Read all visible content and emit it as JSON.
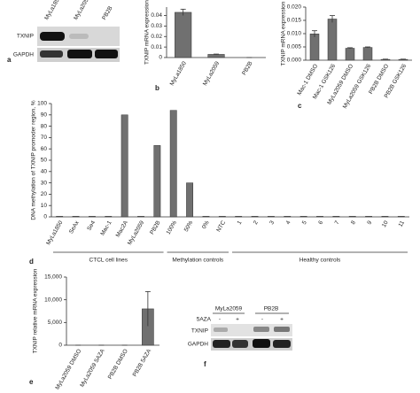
{
  "panel_a": {
    "letter": "a",
    "lanes": [
      "MyLa1850",
      "MyLa2059",
      "PB2B"
    ],
    "rows": [
      "TXNIP",
      "GAPDH"
    ]
  },
  "panel_f": {
    "letter": "f",
    "groups": [
      "MyLa2059",
      "PB2B"
    ],
    "treatment": "5AZA",
    "lanes": [
      "-",
      "+",
      "-",
      "+"
    ],
    "rows": [
      "TXNIP",
      "GAPDH"
    ]
  },
  "chart_data": [
    {
      "type": "bar",
      "letter": "b",
      "ylabel": "TXNIP mRNA expression",
      "color": "#707070",
      "categories": [
        "MyLa1850",
        "MyLa2059",
        "PB2B"
      ],
      "values": [
        0.043,
        0.003,
        0
      ],
      "errors": [
        0.003,
        0.0003,
        0
      ],
      "ylim": [
        0,
        0.048
      ],
      "yticks": [
        0,
        0.01,
        0.02,
        0.03,
        0.04
      ]
    },
    {
      "type": "bar",
      "letter": "c",
      "ylabel": "TXNIP mRNA expression",
      "color": "#707070",
      "categories": [
        "Mac-1 DMSO",
        "Mac-1 GSK126",
        "MyLa2059 DMSO",
        "MyLa2059 GSK126",
        "PB2B DMSO",
        "PB2B GSK126"
      ],
      "values": [
        0.0099,
        0.0155,
        0.0045,
        0.0048,
        0.0003,
        0.0003
      ],
      "errors": [
        0.0012,
        0.0013,
        0.0002,
        0.0002,
        0.0001,
        0.0001
      ],
      "ylim": [
        0,
        0.02
      ],
      "yticks": [
        {
          "value": 0,
          "label": "0.000"
        },
        0.005,
        {
          "value": 0.01,
          "label": "0.010"
        },
        0.015,
        {
          "value": 0.02,
          "label": "0.020"
        }
      ]
    },
    {
      "type": "bar",
      "letter": "d",
      "ylabel": "DNA methylation of TXNIP promoder region, %",
      "color": "#707070",
      "categories": [
        "MyLa1850",
        "SeAx",
        "Se4",
        "Mac-1",
        "Mac2A",
        "MyLa2059",
        "PB2B",
        "100%",
        "50%",
        "0%",
        "NTC",
        "1",
        "2",
        "3",
        "4",
        "5",
        "6",
        "7",
        "8",
        "9",
        "10",
        "11"
      ],
      "values": [
        0.5,
        0.5,
        0.5,
        0.5,
        90,
        0.5,
        63,
        94,
        30,
        0.5,
        0.5,
        0.5,
        0.5,
        0.5,
        0.5,
        0.5,
        0.5,
        0.5,
        0.5,
        0.5,
        0.5,
        0.5
      ],
      "group_labels": [
        "CTCL cell lines",
        "Methylation controls",
        "Healthy controls"
      ],
      "ylim": [
        0,
        100
      ],
      "yticks": [
        0,
        10,
        20,
        30,
        40,
        50,
        60,
        70,
        80,
        90,
        100
      ]
    },
    {
      "type": "bar",
      "letter": "e",
      "ylabel": "TXNIP relative mRNA expression",
      "color": "#707070",
      "categories": [
        "MyLa2059 DMSO",
        "MyLa2059 5AZA",
        "PB2B DMSO",
        "PB2B 5AZA"
      ],
      "values": [
        0,
        0,
        0,
        8000
      ],
      "errors": [
        0,
        0,
        0,
        3800
      ],
      "ylim": [
        0,
        15000
      ],
      "yticks": [
        0,
        {
          "value": 5000,
          "label": "5,000"
        },
        {
          "value": 10000,
          "label": "10,000"
        },
        {
          "value": 15000,
          "label": "15,000"
        }
      ]
    }
  ]
}
